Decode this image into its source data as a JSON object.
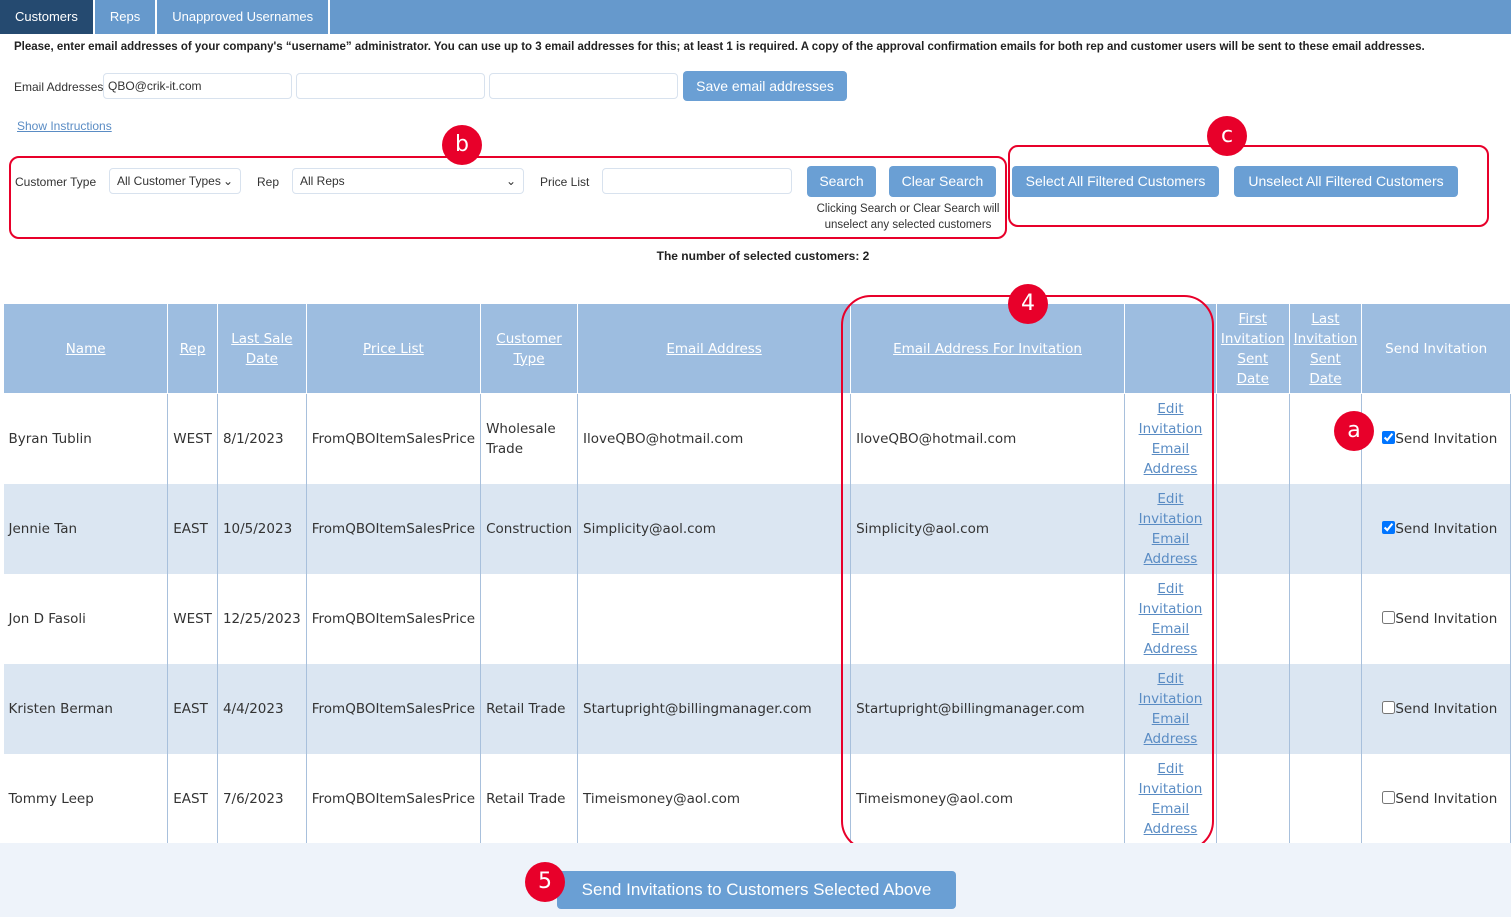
{
  "tabs": [
    "Customers",
    "Reps",
    "Unapproved Usernames"
  ],
  "instructions": "Please, enter email addresses of your company's “username” administrator. You can use up to 3 email addresses for this; at least 1 is required. A copy of the approval confirmation emails for both rep and customer users will be sent to these email addresses.",
  "email": {
    "label": "Email Addresses",
    "values": [
      "QBO@crik-it.com",
      "",
      ""
    ],
    "save_label": "Save email addresses"
  },
  "show_instructions": "Show Instructions",
  "filters": {
    "customer_type_label": "Customer Type",
    "customer_type_value": "All Customer Types",
    "rep_label": "Rep",
    "rep_value": "All Reps",
    "price_list_label": "Price List",
    "price_list_value": "",
    "search_label": "Search",
    "clear_label": "Clear Search",
    "hint_line1": "Clicking Search or Clear Search will",
    "hint_line2": "unselect any selected customers"
  },
  "select_all_label": "Select All Filtered Customers",
  "unselect_all_label": "Unselect All Filtered Customers",
  "selected_count_text": "The number of selected customers: 2",
  "table": {
    "headers": [
      "Name",
      "Rep",
      "Last Sale Date",
      "Price List",
      "Customer Type",
      "Email Address",
      "Email Address For Invitation",
      "",
      "First Invitation Sent Date",
      "Last Invitation Sent Date",
      "Send Invitation"
    ],
    "edit_link": [
      "Edit",
      "Invitation",
      "Email",
      "Address"
    ],
    "send_label": "Send Invitation",
    "rows": [
      {
        "name": "Byran Tublin",
        "rep": "WEST",
        "last_sale": "8/1/2023",
        "price_list": "FromQBOItemSalesPrice",
        "type": "Wholesale Trade",
        "email": "IloveQBO@hotmail.com",
        "inv_email": "IloveQBO@hotmail.com",
        "first": "",
        "last": "",
        "checked": true
      },
      {
        "name": "Jennie Tan",
        "rep": "EAST",
        "last_sale": "10/5/2023",
        "price_list": "FromQBOItemSalesPrice",
        "type": "Construction",
        "email": "Simplicity@aol.com",
        "inv_email": "Simplicity@aol.com",
        "first": "",
        "last": "",
        "checked": true
      },
      {
        "name": "Jon D Fasoli",
        "rep": "WEST",
        "last_sale": "12/25/2023",
        "price_list": "FromQBOItemSalesPrice",
        "type": "",
        "email": "",
        "inv_email": "",
        "first": "",
        "last": "",
        "checked": false
      },
      {
        "name": "Kristen Berman",
        "rep": "EAST",
        "last_sale": "4/4/2023",
        "price_list": "FromQBOItemSalesPrice",
        "type": "Retail Trade",
        "email": "Startupright@billingmanager.com",
        "inv_email": "Startupright@billingmanager.com",
        "first": "",
        "last": "",
        "checked": false
      },
      {
        "name": "Tommy Leep",
        "rep": "EAST",
        "last_sale": "7/6/2023",
        "price_list": "FromQBOItemSalesPrice",
        "type": "Retail Trade",
        "email": "Timeismoney@aol.com",
        "inv_email": "Timeismoney@aol.com",
        "first": "",
        "last": "",
        "checked": false
      }
    ]
  },
  "send_button_label": "Send Invitations to Customers Selected Above",
  "annotations": {
    "a": "a",
    "b": "b",
    "c": "c",
    "four": "4",
    "five": "5"
  },
  "colors": {
    "tab_bar": "#6699cc",
    "active_tab": "#254a70",
    "button": "#6a9fd4",
    "header": "#9dbde0",
    "annotation": "#e8002a"
  }
}
